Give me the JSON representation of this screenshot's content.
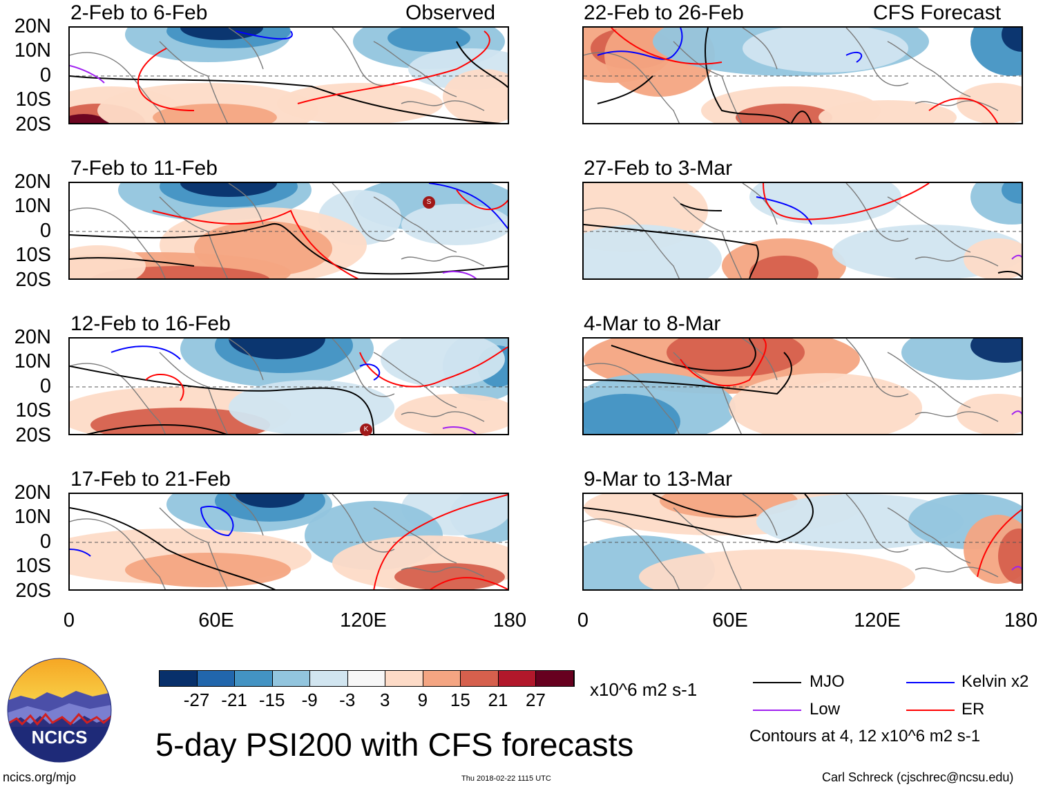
{
  "header": {
    "left_tag": "Observed",
    "right_tag": "CFS Forecast"
  },
  "panels_left": [
    {
      "period": "2-Feb to 6-Feb"
    },
    {
      "period": "7-Feb to 11-Feb"
    },
    {
      "period": "12-Feb to 16-Feb"
    },
    {
      "period": "17-Feb to 21-Feb"
    }
  ],
  "panels_right": [
    {
      "period": "22-Feb to 26-Feb"
    },
    {
      "period": "27-Feb to 3-Mar"
    },
    {
      "period": "4-Mar to 8-Mar"
    },
    {
      "period": "9-Mar to 13-Mar"
    }
  ],
  "lat_labels": [
    "20N",
    "10N",
    "0",
    "10S",
    "20S"
  ],
  "lon_labels": [
    "0",
    "60E",
    "120E",
    "180"
  ],
  "storm_markers": [
    "S",
    "K"
  ],
  "colorbar": {
    "colors": [
      "#08306b",
      "#2166ac",
      "#4393c3",
      "#92c5de",
      "#d1e5f0",
      "#f7f7f7",
      "#fddbc7",
      "#f4a582",
      "#d6604d",
      "#b2182b",
      "#67001f"
    ],
    "labels": [
      "-27",
      "-21",
      "-15",
      "-9",
      "-3",
      "3",
      "9",
      "15",
      "21",
      "27"
    ],
    "units": "x10^6 m2 s-1"
  },
  "legend": {
    "mjo": {
      "label": "MJO",
      "color": "#000000"
    },
    "kelvin": {
      "label": "Kelvin x2",
      "color": "#0000ff"
    },
    "low": {
      "label": "Low",
      "color": "#a020f0"
    },
    "er": {
      "label": "ER",
      "color": "#ff0000"
    },
    "contours_note": "Contours at 4, 12 x10^6 m2 s-1"
  },
  "main_title": "5-day PSI200 with CFS forecasts",
  "logo_text": "NCICS",
  "footer": {
    "website": "ncics.org/mjo",
    "timestamp": "Thu 2018-02-22 1115 UTC",
    "author": "Carl Schreck (cjschrec@ncsu.edu)"
  }
}
